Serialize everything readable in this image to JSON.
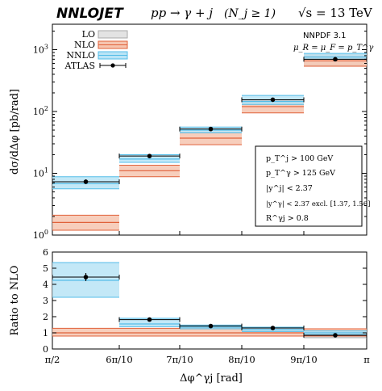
{
  "header": {
    "logo": "NNLOJET",
    "process": "pp → γ + j",
    "njets": "(N_j ≥ 1)",
    "energy": "√s = 13 TeV"
  },
  "chart_data": [
    {
      "type": "bar",
      "panel": "main",
      "ylabel": "dσ/dΔφ [pb/rad]",
      "yscale": "log",
      "ylim": [
        1,
        3000
      ],
      "y_ticks": [
        "10^0",
        "10^1",
        "10^2",
        "10^3"
      ],
      "x_ticks": [
        "π/2",
        "6π/10",
        "7π/10",
        "8π/10",
        "9π/10",
        "π"
      ],
      "annotations": [
        "NNPDF 3.1",
        "μ_R = μ_F = p_T^γ"
      ],
      "cuts": [
        "p_T^j > 100 GeV",
        "p_T^γ > 125 GeV",
        "|y^j| < 2.37",
        "|y^γ| < 2.37 excl. [1.37, 1.56]",
        "R^γj > 0.8"
      ],
      "legend": {
        "placement": "top-left",
        "entries": [
          "LO",
          "NLO",
          "NNLO",
          "ATLAS"
        ]
      },
      "bins": [
        "π/2–6π/10",
        "6π/10–7π/10",
        "7π/10–8π/10",
        "8π/10–9π/10",
        "9π/10–π"
      ],
      "series": [
        {
          "name": "LO",
          "color": "#aaaaaa",
          "values": [
            null,
            null,
            null,
            null,
            700
          ],
          "low": [
            null,
            null,
            null,
            null,
            560
          ],
          "high": [
            null,
            null,
            null,
            null,
            830
          ]
        },
        {
          "name": "NLO",
          "color": "#e0613a",
          "values": [
            1.6,
            11,
            37,
            120,
            660
          ],
          "low": [
            1.2,
            8.8,
            29,
            95,
            540
          ],
          "high": [
            2.1,
            13.5,
            46,
            150,
            780
          ]
        },
        {
          "name": "NNLO",
          "color": "#55bde8",
          "values": [
            6.8,
            17,
            50,
            145,
            760
          ],
          "low": [
            5.6,
            15,
            45,
            130,
            700
          ],
          "high": [
            8.8,
            20,
            56,
            182,
            870
          ]
        },
        {
          "name": "ATLAS",
          "color": "#000000",
          "values": [
            7.3,
            19,
            52,
            155,
            700
          ],
          "yerr": [
            0.6,
            1.0,
            2.5,
            7,
            25
          ]
        }
      ]
    },
    {
      "type": "bar",
      "panel": "ratio",
      "ylabel": "Ratio to NLO",
      "ylim": [
        0,
        6
      ],
      "y_ticks": [
        "0",
        "1",
        "2",
        "3",
        "4",
        "5",
        "6"
      ],
      "x_ticks": [
        "π/2",
        "6π/10",
        "7π/10",
        "8π/10",
        "9π/10",
        "π"
      ],
      "xlabel": "Δφ^γj [rad]",
      "series": [
        {
          "name": "LO",
          "values": [
            null,
            null,
            null,
            null,
            0.82
          ],
          "low": [
            null,
            null,
            null,
            null,
            0.7
          ],
          "high": [
            null,
            null,
            null,
            null,
            0.95
          ]
        },
        {
          "name": "NLO",
          "values": [
            1.0,
            1.0,
            1.0,
            1.0,
            1.0
          ],
          "low": [
            0.8,
            0.8,
            0.8,
            0.8,
            0.8
          ],
          "high": [
            1.28,
            1.28,
            1.28,
            1.28,
            1.25
          ]
        },
        {
          "name": "NNLO",
          "values": [
            4.25,
            1.55,
            1.35,
            1.2,
            1.0
          ],
          "low": [
            3.2,
            1.38,
            1.25,
            1.08,
            0.88
          ],
          "high": [
            5.35,
            1.9,
            1.48,
            1.35,
            1.12
          ]
        },
        {
          "name": "ATLAS",
          "values": [
            4.45,
            1.82,
            1.42,
            1.3,
            0.85
          ],
          "yerr": [
            0.25,
            0.08,
            0.05,
            0.05,
            0.03
          ]
        }
      ]
    }
  ]
}
